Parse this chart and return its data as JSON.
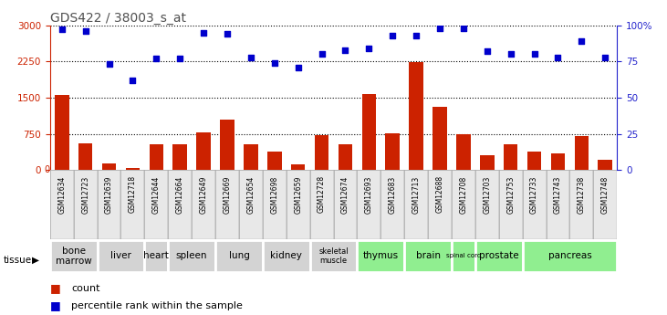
{
  "title": "GDS422 / 38003_s_at",
  "samples": [
    "GSM12634",
    "GSM12723",
    "GSM12639",
    "GSM12718",
    "GSM12644",
    "GSM12664",
    "GSM12649",
    "GSM12669",
    "GSM12654",
    "GSM12698",
    "GSM12659",
    "GSM12728",
    "GSM12674",
    "GSM12693",
    "GSM12683",
    "GSM12713",
    "GSM12688",
    "GSM12708",
    "GSM12703",
    "GSM12753",
    "GSM12733",
    "GSM12743",
    "GSM12738",
    "GSM12748"
  ],
  "counts": [
    1560,
    550,
    130,
    50,
    530,
    530,
    780,
    1050,
    540,
    390,
    110,
    720,
    540,
    1570,
    760,
    2230,
    1310,
    750,
    310,
    540,
    380,
    340,
    710,
    210
  ],
  "percentiles": [
    97,
    96,
    73,
    62,
    77,
    77,
    95,
    94,
    78,
    74,
    71,
    80,
    83,
    84,
    93,
    93,
    98,
    98,
    82,
    80,
    80,
    78,
    89,
    78
  ],
  "tissues": [
    {
      "name": "bone\nmarrow",
      "start": 0,
      "end": 2,
      "color": "#d3d3d3"
    },
    {
      "name": "liver",
      "start": 2,
      "end": 4,
      "color": "#d3d3d3"
    },
    {
      "name": "heart",
      "start": 4,
      "end": 5,
      "color": "#d3d3d3"
    },
    {
      "name": "spleen",
      "start": 5,
      "end": 7,
      "color": "#d3d3d3"
    },
    {
      "name": "lung",
      "start": 7,
      "end": 9,
      "color": "#d3d3d3"
    },
    {
      "name": "kidney",
      "start": 9,
      "end": 11,
      "color": "#d3d3d3"
    },
    {
      "name": "skeletal\nmuscle",
      "start": 11,
      "end": 13,
      "color": "#d3d3d3"
    },
    {
      "name": "thymus",
      "start": 13,
      "end": 15,
      "color": "#90ee90"
    },
    {
      "name": "brain",
      "start": 15,
      "end": 17,
      "color": "#90ee90"
    },
    {
      "name": "spinal cord",
      "start": 17,
      "end": 18,
      "color": "#90ee90"
    },
    {
      "name": "prostate",
      "start": 18,
      "end": 20,
      "color": "#90ee90"
    },
    {
      "name": "pancreas",
      "start": 20,
      "end": 24,
      "color": "#90ee90"
    }
  ],
  "ylim_left": [
    0,
    3000
  ],
  "ylim_right": [
    0,
    100
  ],
  "yticks_left": [
    0,
    750,
    1500,
    2250,
    3000
  ],
  "yticks_right": [
    0,
    25,
    50,
    75,
    100
  ],
  "bar_color": "#cc2200",
  "dot_color": "#0000cc",
  "title_color": "#505050",
  "left_axis_color": "#cc2200",
  "right_axis_color": "#2222cc",
  "bg_color": "#ffffff",
  "fig_width": 7.31,
  "fig_height": 3.45,
  "fig_dpi": 100
}
